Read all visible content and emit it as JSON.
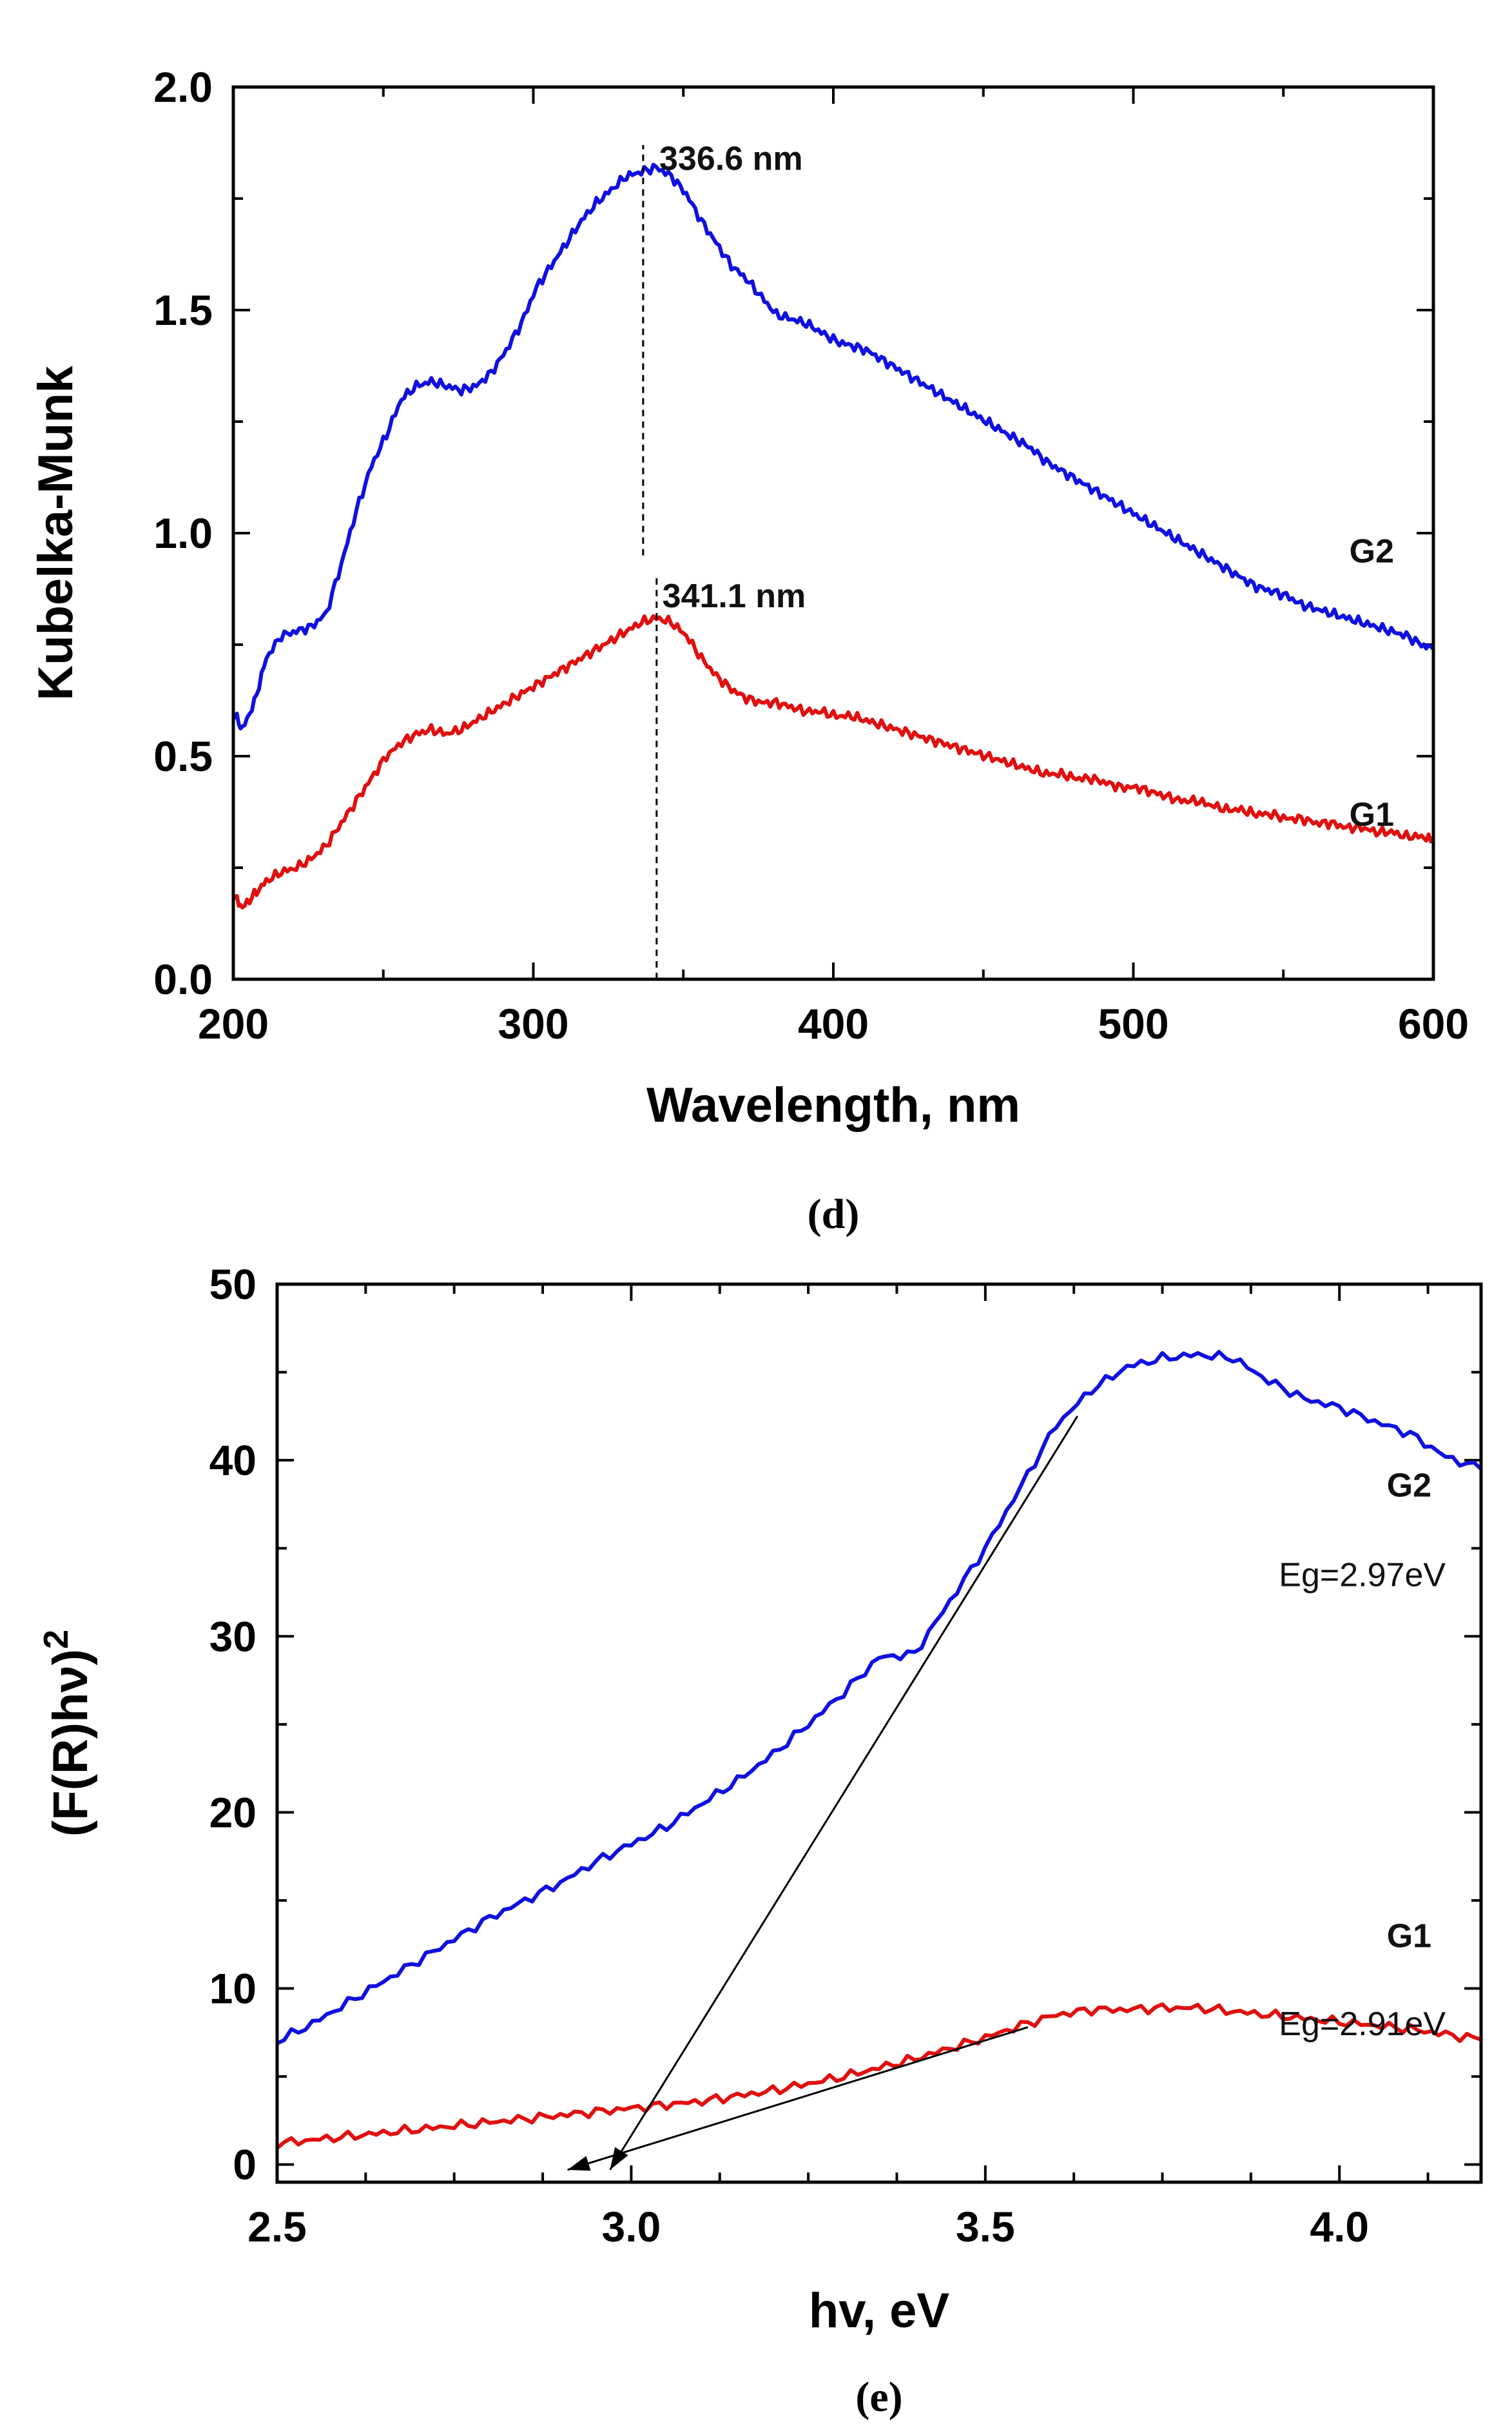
{
  "chart_data": [
    {
      "panel": "d",
      "caption": "(d)",
      "type": "line",
      "xlabel": "Wavelength, nm",
      "ylabel": "Kubelka-Munk",
      "xlim": [
        200,
        600
      ],
      "ylim": [
        0.0,
        2.0
      ],
      "xticks": [
        "200",
        "300",
        "400",
        "500",
        "600"
      ],
      "yticks": [
        "0.0",
        "0.5",
        "1.0",
        "1.5",
        "2.0"
      ],
      "series": [
        {
          "name": "G2",
          "color": "#1010e0",
          "x": [
            200,
            203,
            207,
            211,
            216,
            221,
            226,
            231,
            236,
            241,
            246,
            251,
            256,
            261,
            266,
            271,
            276,
            281,
            286,
            291,
            296,
            301,
            306,
            311,
            316,
            321,
            326,
            331,
            336,
            341,
            346,
            351,
            356,
            361,
            366,
            371,
            376,
            381,
            386,
            391,
            396,
            401,
            406,
            411,
            416,
            421,
            426,
            431,
            436,
            441,
            446,
            451,
            456,
            461,
            466,
            471,
            476,
            481,
            486,
            491,
            496,
            501,
            506,
            511,
            516,
            521,
            526,
            531,
            536,
            541,
            546,
            551,
            556,
            561,
            566,
            571,
            576,
            581,
            586,
            591,
            596,
            600
          ],
          "y": [
            0.6,
            0.56,
            0.62,
            0.72,
            0.77,
            0.78,
            0.79,
            0.82,
            0.93,
            1.05,
            1.15,
            1.22,
            1.3,
            1.33,
            1.34,
            1.33,
            1.32,
            1.33,
            1.36,
            1.41,
            1.47,
            1.55,
            1.6,
            1.65,
            1.7,
            1.74,
            1.77,
            1.8,
            1.81,
            1.82,
            1.8,
            1.76,
            1.7,
            1.65,
            1.6,
            1.57,
            1.53,
            1.49,
            1.48,
            1.47,
            1.45,
            1.43,
            1.42,
            1.41,
            1.39,
            1.37,
            1.35,
            1.33,
            1.31,
            1.29,
            1.27,
            1.25,
            1.23,
            1.21,
            1.19,
            1.16,
            1.14,
            1.12,
            1.1,
            1.08,
            1.06,
            1.04,
            1.02,
            1.0,
            0.98,
            0.96,
            0.94,
            0.92,
            0.9,
            0.88,
            0.87,
            0.86,
            0.84,
            0.83,
            0.82,
            0.81,
            0.8,
            0.79,
            0.78,
            0.77,
            0.75,
            0.74
          ]
        },
        {
          "name": "G1",
          "color": "#e01010",
          "x": [
            200,
            203,
            207,
            211,
            216,
            221,
            226,
            231,
            236,
            241,
            246,
            251,
            256,
            261,
            266,
            271,
            276,
            281,
            286,
            291,
            296,
            301,
            306,
            311,
            316,
            321,
            326,
            331,
            336,
            341,
            346,
            351,
            356,
            361,
            366,
            371,
            376,
            381,
            386,
            391,
            396,
            401,
            406,
            411,
            416,
            421,
            426,
            431,
            436,
            441,
            446,
            451,
            456,
            461,
            466,
            471,
            476,
            481,
            486,
            491,
            496,
            501,
            506,
            511,
            516,
            521,
            526,
            531,
            536,
            541,
            546,
            551,
            556,
            561,
            566,
            571,
            576,
            581,
            586,
            591,
            596,
            600
          ],
          "y": [
            0.19,
            0.16,
            0.19,
            0.22,
            0.24,
            0.25,
            0.27,
            0.3,
            0.35,
            0.4,
            0.45,
            0.5,
            0.53,
            0.55,
            0.56,
            0.55,
            0.56,
            0.58,
            0.6,
            0.62,
            0.64,
            0.66,
            0.68,
            0.7,
            0.72,
            0.74,
            0.76,
            0.78,
            0.8,
            0.81,
            0.8,
            0.77,
            0.72,
            0.68,
            0.65,
            0.63,
            0.62,
            0.62,
            0.61,
            0.6,
            0.6,
            0.59,
            0.59,
            0.58,
            0.57,
            0.56,
            0.55,
            0.54,
            0.53,
            0.52,
            0.51,
            0.5,
            0.49,
            0.48,
            0.47,
            0.46,
            0.46,
            0.45,
            0.45,
            0.44,
            0.43,
            0.43,
            0.42,
            0.41,
            0.4,
            0.4,
            0.39,
            0.38,
            0.38,
            0.37,
            0.37,
            0.36,
            0.36,
            0.35,
            0.35,
            0.34,
            0.34,
            0.33,
            0.33,
            0.32,
            0.32,
            0.31
          ]
        }
      ],
      "peak_markers": [
        {
          "x": 336.6,
          "y_from": 0.95,
          "y_to": 1.87,
          "label": "336.6 nm",
          "label_x": 342,
          "label_y": 1.84
        },
        {
          "x": 341.1,
          "y_from": 0.0,
          "y_to": 0.9,
          "label": "341.1 nm",
          "label_x": 343,
          "label_y": 0.86
        }
      ],
      "annotations": [
        {
          "text": "G2",
          "x": 572,
          "y": 0.96
        },
        {
          "text": "G1",
          "x": 572,
          "y": 0.37
        }
      ]
    },
    {
      "panel": "e",
      "caption": "(e)",
      "type": "line",
      "xlabel": "hv, eV",
      "ylabel": "(F(R)hν)",
      "ylabel_superscript": "2",
      "xlim": [
        2.5,
        4.2
      ],
      "ylim": [
        -1,
        50
      ],
      "xticks": [
        "2.5",
        "3.0",
        "3.5",
        "4.0"
      ],
      "yticks": [
        "0",
        "10",
        "20",
        "30",
        "40",
        "50"
      ],
      "series": [
        {
          "name": "G2",
          "color": "#1010e0",
          "x": [
            2.5,
            2.55,
            2.6,
            2.65,
            2.7,
            2.75,
            2.8,
            2.85,
            2.9,
            2.95,
            3.0,
            3.05,
            3.1,
            3.15,
            3.2,
            3.25,
            3.3,
            3.35,
            3.4,
            3.45,
            3.5,
            3.55,
            3.6,
            3.65,
            3.7,
            3.75,
            3.8,
            3.85,
            3.9,
            3.95,
            4.0,
            4.05,
            4.1,
            4.15,
            4.2
          ],
          "y": [
            7.0,
            8.0,
            9.2,
            10.4,
            11.6,
            12.8,
            14.0,
            15.0,
            16.0,
            17.2,
            18.2,
            19.2,
            20.5,
            21.8,
            23.3,
            25.0,
            26.8,
            28.8,
            29.0,
            32.0,
            35.0,
            38.5,
            42.0,
            44.0,
            45.3,
            45.8,
            46.0,
            45.8,
            44.5,
            43.5,
            43.0,
            42.2,
            41.5,
            40.2,
            39.5
          ]
        },
        {
          "name": "G1",
          "color": "#e01010",
          "x": [
            2.5,
            2.55,
            2.6,
            2.65,
            2.7,
            2.75,
            2.8,
            2.85,
            2.9,
            2.95,
            3.0,
            3.05,
            3.1,
            3.15,
            3.2,
            3.25,
            3.3,
            3.35,
            3.4,
            3.45,
            3.5,
            3.55,
            3.6,
            3.65,
            3.7,
            3.75,
            3.8,
            3.85,
            3.9,
            3.95,
            4.0,
            4.05,
            4.1,
            4.15,
            4.2
          ],
          "y": [
            1.2,
            1.4,
            1.6,
            1.8,
            2.0,
            2.2,
            2.4,
            2.6,
            2.8,
            3.0,
            3.2,
            3.4,
            3.6,
            3.9,
            4.2,
            4.6,
            5.0,
            5.5,
            6.0,
            6.6,
            7.2,
            7.9,
            8.5,
            8.8,
            8.8,
            8.9,
            8.9,
            8.7,
            8.5,
            8.3,
            8.1,
            7.9,
            7.7,
            7.4,
            7.1
          ]
        }
      ],
      "tangent_lines": [
        {
          "name": "G2 tangent",
          "from": [
            3.63,
            42.5
          ],
          "to": [
            2.97,
            -0.3
          ]
        },
        {
          "name": "G1 tangent",
          "from": [
            3.56,
            7.8
          ],
          "to": [
            2.91,
            -0.3
          ]
        }
      ],
      "annotations": [
        {
          "text": "G2",
          "x": 4.13,
          "y": 38.6,
          "bold": true
        },
        {
          "text": "Eg=2.97eV",
          "x": 4.15,
          "y": 33.5,
          "bold": false
        },
        {
          "text": "G1",
          "x": 4.13,
          "y": 13.0,
          "bold": true
        },
        {
          "text": "Eg=2.91eV",
          "x": 4.15,
          "y": 8.0,
          "bold": false
        }
      ]
    }
  ]
}
